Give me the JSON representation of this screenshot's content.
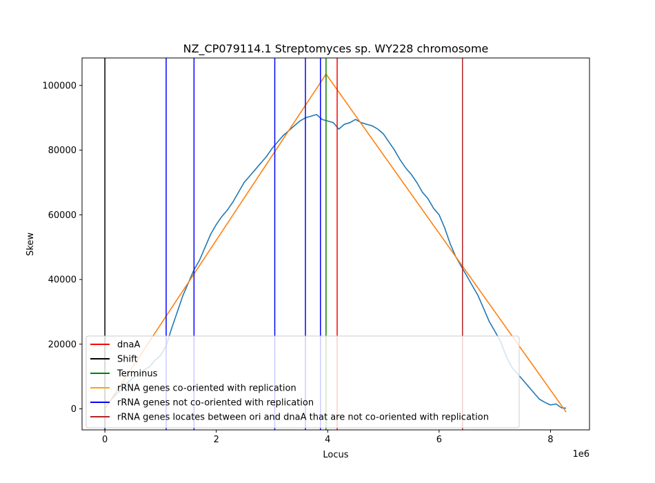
{
  "chart_data": {
    "type": "line",
    "title": "NZ_CP079114.1 Streptomyces sp. WY228 chromosome",
    "xlabel": "Locus",
    "ylabel": "Skew",
    "x_offset_label": "1e6",
    "xlim": [
      -0.41,
      8.7
    ],
    "ylim": [
      -6500,
      108500
    ],
    "x_ticks": [
      0,
      2,
      4,
      6,
      8
    ],
    "y_ticks": [
      0,
      20000,
      40000,
      60000,
      80000,
      100000
    ],
    "legend_position": "lower-left",
    "skew_series": {
      "color": "#1f77b4",
      "x": [
        0.0,
        0.1,
        0.2,
        0.3,
        0.4,
        0.5,
        0.6,
        0.7,
        0.8,
        0.9,
        1.0,
        1.1,
        1.2,
        1.3,
        1.4,
        1.5,
        1.6,
        1.7,
        1.8,
        1.9,
        2.0,
        2.1,
        2.2,
        2.3,
        2.4,
        2.5,
        2.6,
        2.7,
        2.8,
        2.9,
        3.0,
        3.1,
        3.2,
        3.3,
        3.4,
        3.5,
        3.6,
        3.7,
        3.8,
        3.9,
        4.0,
        4.1,
        4.2,
        4.3,
        4.4,
        4.5,
        4.6,
        4.7,
        4.8,
        4.9,
        5.0,
        5.1,
        5.2,
        5.3,
        5.4,
        5.5,
        5.6,
        5.7,
        5.8,
        5.9,
        6.0,
        6.1,
        6.2,
        6.3,
        6.4,
        6.5,
        6.6,
        6.7,
        6.8,
        6.9,
        7.0,
        7.1,
        7.2,
        7.3,
        7.4,
        7.5,
        7.6,
        7.7,
        7.8,
        7.9,
        8.0,
        8.1,
        8.2,
        8.28
      ],
      "y": [
        0,
        2500,
        4500,
        6000,
        8000,
        9500,
        10500,
        12000,
        13000,
        15000,
        16500,
        19500,
        25000,
        30000,
        35000,
        39000,
        43000,
        46000,
        50000,
        54000,
        57000,
        59500,
        61500,
        64000,
        67000,
        70000,
        72000,
        74000,
        76000,
        78000,
        80500,
        82500,
        84500,
        86000,
        87500,
        89000,
        90000,
        90500,
        91000,
        89500,
        89000,
        88500,
        86500,
        88000,
        88500,
        89500,
        88500,
        88000,
        87500,
        86500,
        85000,
        82500,
        80000,
        77000,
        74500,
        72500,
        70000,
        67000,
        65000,
        62000,
        60000,
        56000,
        51000,
        47000,
        44000,
        41000,
        38000,
        35000,
        31000,
        27000,
        24000,
        21000,
        16500,
        13000,
        11000,
        9000,
        7000,
        5000,
        3000,
        2000,
        1200,
        1500,
        300,
        200
      ]
    },
    "fit_series": {
      "color": "#ff7f0e",
      "x": [
        0.0,
        3.97,
        8.28
      ],
      "y": [
        0,
        103500,
        -1000
      ]
    },
    "vertical_lines": [
      {
        "x": 0.0,
        "color": "#000000"
      },
      {
        "x": 1.1,
        "color": "#0000ff"
      },
      {
        "x": 1.6,
        "color": "#0000ff"
      },
      {
        "x": 3.05,
        "color": "#0000ff"
      },
      {
        "x": 3.6,
        "color": "#0000ff"
      },
      {
        "x": 3.87,
        "color": "#0000ff"
      },
      {
        "x": 3.97,
        "color": "#008000"
      },
      {
        "x": 4.17,
        "color": "#ff0000"
      },
      {
        "x": 6.42,
        "color": "#b22222"
      }
    ],
    "legend": [
      {
        "label": "dnaA",
        "color": "#ff0000"
      },
      {
        "label": "Shift",
        "color": "#000000"
      },
      {
        "label": "Terminus",
        "color": "#008000"
      },
      {
        "label": "rRNA genes co-oriented with replication",
        "color": "#ffa500"
      },
      {
        "label": "rRNA genes not co-oriented with replication",
        "color": "#0000ff"
      },
      {
        "label": "rRNA genes locates between ori and dnaA that are not co-oriented with replication",
        "color": "#b22222"
      }
    ]
  }
}
